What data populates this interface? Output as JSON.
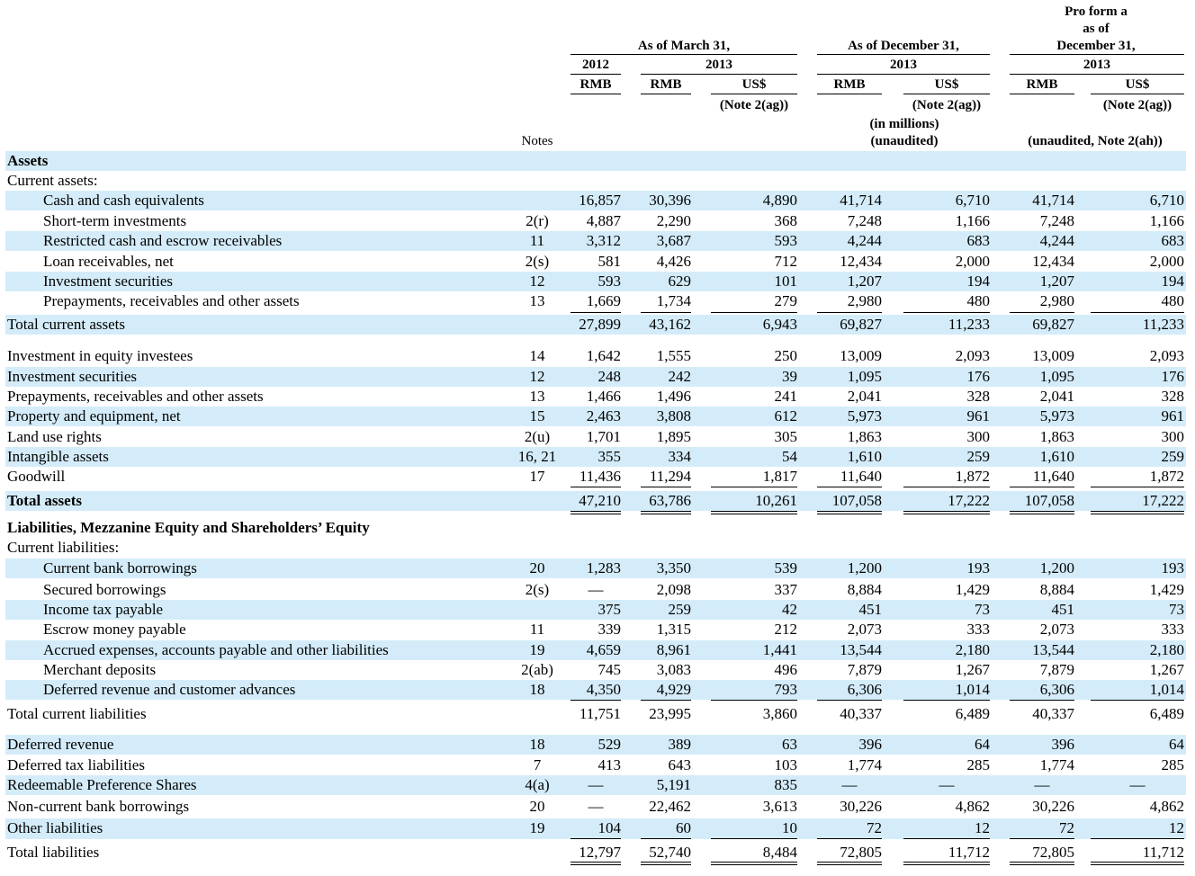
{
  "header": {
    "proforma_line1": "Pro form a",
    "proforma_line2": "as of",
    "proforma_line3": "December 31,",
    "proforma_year": "2013",
    "march_title": "As of March 31,",
    "march_year_2012": "2012",
    "march_year_2013": "2013",
    "dec_title": "As of December 31,",
    "dec_year": "2013",
    "col_rmb": "RMB",
    "col_usd": "US$",
    "note_2ag": "(Note 2(ag))",
    "in_millions": "(in millions)",
    "unaudited": "(unaudited)",
    "unaudited_2ah": "(unaudited, Note 2(ah))",
    "notes_label": "Notes"
  },
  "rows": [
    {
      "label": "Assets",
      "style": "section"
    },
    {
      "label": "Current assets:",
      "style": "plain"
    },
    {
      "label": "Cash and cash equivalents",
      "style": "indent",
      "note": "",
      "values": [
        "16,857",
        "30,396",
        "4,890",
        "41,714",
        "6,710",
        "41,714",
        "6,710"
      ]
    },
    {
      "label": "Short-term investments",
      "style": "indent",
      "note": "2(r)",
      "values": [
        "4,887",
        "2,290",
        "368",
        "7,248",
        "1,166",
        "7,248",
        "1,166"
      ]
    },
    {
      "label": "Restricted cash and escrow receivables",
      "style": "indent",
      "note": "11",
      "values": [
        "3,312",
        "3,687",
        "593",
        "4,244",
        "683",
        "4,244",
        "683"
      ]
    },
    {
      "label": "Loan receivables, net",
      "style": "indent",
      "note": "2(s)",
      "values": [
        "581",
        "4,426",
        "712",
        "12,434",
        "2,000",
        "12,434",
        "2,000"
      ]
    },
    {
      "label": "Investment securities",
      "style": "indent",
      "note": "12",
      "values": [
        "593",
        "629",
        "101",
        "1,207",
        "194",
        "1,207",
        "194"
      ]
    },
    {
      "label": "Prepayments, receivables and other assets",
      "style": "indent",
      "note": "13",
      "values": [
        "1,669",
        "1,734",
        "279",
        "2,980",
        "480",
        "2,980",
        "480"
      ]
    },
    {
      "label": "Total current assets",
      "style": "plain",
      "note": "",
      "values": [
        "27,899",
        "43,162",
        "6,943",
        "69,827",
        "11,233",
        "69,827",
        "11,233"
      ]
    },
    {
      "label": "Investment in equity investees",
      "style": "plain",
      "note": "14",
      "values": [
        "1,642",
        "1,555",
        "250",
        "13,009",
        "2,093",
        "13,009",
        "2,093"
      ]
    },
    {
      "label": "Investment securities",
      "style": "plain",
      "note": "12",
      "values": [
        "248",
        "242",
        "39",
        "1,095",
        "176",
        "1,095",
        "176"
      ]
    },
    {
      "label": "Prepayments, receivables and other assets",
      "style": "plain",
      "note": "13",
      "values": [
        "1,466",
        "1,496",
        "241",
        "2,041",
        "328",
        "2,041",
        "328"
      ]
    },
    {
      "label": "Property and equipment, net",
      "style": "plain",
      "note": "15",
      "values": [
        "2,463",
        "3,808",
        "612",
        "5,973",
        "961",
        "5,973",
        "961"
      ]
    },
    {
      "label": "Land use rights",
      "style": "plain",
      "note": "2(u)",
      "values": [
        "1,701",
        "1,895",
        "305",
        "1,863",
        "300",
        "1,863",
        "300"
      ]
    },
    {
      "label": "Intangible assets",
      "style": "plain",
      "note": "16, 21",
      "values": [
        "355",
        "334",
        "54",
        "1,610",
        "259",
        "1,610",
        "259"
      ]
    },
    {
      "label": "Goodwill",
      "style": "plain",
      "note": "17",
      "values": [
        "11,436",
        "11,294",
        "1,817",
        "11,640",
        "1,872",
        "11,640",
        "1,872"
      ]
    },
    {
      "label": "Total assets",
      "style": "bold",
      "note": "",
      "values": [
        "47,210",
        "63,786",
        "10,261",
        "107,058",
        "17,222",
        "107,058",
        "17,222"
      ]
    },
    {
      "label": "Liabilities, Mezzanine Equity and Shareholders’ Equity",
      "style": "section"
    },
    {
      "label": "Current liabilities:",
      "style": "plain"
    },
    {
      "label": "Current bank borrowings",
      "style": "indent",
      "note": "20",
      "values": [
        "1,283",
        "3,350",
        "539",
        "1,200",
        "193",
        "1,200",
        "193"
      ]
    },
    {
      "label": "Secured borrowings",
      "style": "indent",
      "note": "2(s)",
      "values": [
        "—",
        "2,098",
        "337",
        "8,884",
        "1,429",
        "8,884",
        "1,429"
      ]
    },
    {
      "label": "Income tax payable",
      "style": "indent",
      "note": "",
      "values": [
        "375",
        "259",
        "42",
        "451",
        "73",
        "451",
        "73"
      ]
    },
    {
      "label": "Escrow money payable",
      "style": "indent",
      "note": "11",
      "values": [
        "339",
        "1,315",
        "212",
        "2,073",
        "333",
        "2,073",
        "333"
      ]
    },
    {
      "label": "Accrued expenses, accounts payable and other liabilities",
      "style": "indent",
      "note": "19",
      "values": [
        "4,659",
        "8,961",
        "1,441",
        "13,544",
        "2,180",
        "13,544",
        "2,180"
      ]
    },
    {
      "label": "Merchant deposits",
      "style": "indent",
      "note": "2(ab)",
      "values": [
        "745",
        "3,083",
        "496",
        "7,879",
        "1,267",
        "7,879",
        "1,267"
      ]
    },
    {
      "label": "Deferred revenue and customer advances",
      "style": "indent",
      "note": "18",
      "values": [
        "4,350",
        "4,929",
        "793",
        "6,306",
        "1,014",
        "6,306",
        "1,014"
      ]
    },
    {
      "label": "Total current liabilities",
      "style": "plain",
      "note": "",
      "values": [
        "11,751",
        "23,995",
        "3,860",
        "40,337",
        "6,489",
        "40,337",
        "6,489"
      ]
    },
    {
      "label": "Deferred revenue",
      "style": "plain",
      "note": "18",
      "values": [
        "529",
        "389",
        "63",
        "396",
        "64",
        "396",
        "64"
      ]
    },
    {
      "label": "Deferred tax liabilities",
      "style": "plain",
      "note": "7",
      "values": [
        "413",
        "643",
        "103",
        "1,774",
        "285",
        "1,774",
        "285"
      ]
    },
    {
      "label": "Redeemable Preference Shares",
      "style": "plain",
      "note": "4(a)",
      "values": [
        "—",
        "5,191",
        "835",
        "—",
        "—",
        "—",
        "—"
      ]
    },
    {
      "label": "Non-current bank borrowings",
      "style": "plain",
      "note": "20",
      "values": [
        "—",
        "22,462",
        "3,613",
        "30,226",
        "4,862",
        "30,226",
        "4,862"
      ]
    },
    {
      "label": "Other liabilities",
      "style": "plain",
      "note": "19",
      "values": [
        "104",
        "60",
        "10",
        "72",
        "12",
        "72",
        "12"
      ]
    },
    {
      "label": "Total liabilities",
      "style": "plain",
      "note": "",
      "values": [
        "12,797",
        "52,740",
        "8,484",
        "72,805",
        "11,712",
        "72,805",
        "11,712"
      ]
    }
  ]
}
